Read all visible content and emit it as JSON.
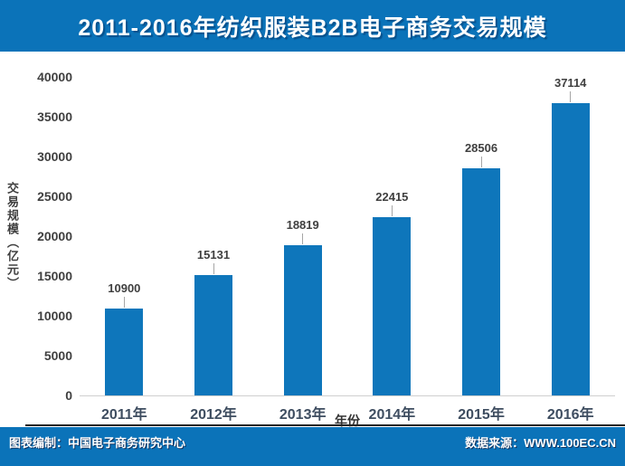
{
  "header": {
    "title": "2011-2016年纺织服装B2B电子商务交易规模"
  },
  "chart_data": {
    "type": "bar",
    "title": "2011-2016年纺织服装B2B电子商务交易规模",
    "categories": [
      "2011年",
      "2012年",
      "2013年",
      "2014年",
      "2015年",
      "2016年"
    ],
    "values": [
      10900,
      15131,
      18819,
      22415,
      28506,
      37114
    ],
    "xlabel": "年份",
    "ylabel": "交易规模（亿元）",
    "ylim": [
      0,
      40000
    ],
    "yticks": [
      0,
      5000,
      10000,
      15000,
      20000,
      25000,
      30000,
      35000,
      40000
    ],
    "grid": false,
    "legend": false,
    "data_labels_shown": true,
    "bar_color": "#0e76bb",
    "label_color": "#3f3f3f"
  },
  "footer": {
    "left": "图表编制：中国电子商务研究中心",
    "right": "数据来源：WWW.100EC.CN"
  },
  "colors": {
    "brand_blue": "#0b73b9",
    "bar_blue": "#0e76bb",
    "tick_text": "#3f3f3f",
    "year_text": "#3e4d60",
    "axis_line": "#cfcfcf",
    "separator": "#262626",
    "background": "#ffffff"
  }
}
